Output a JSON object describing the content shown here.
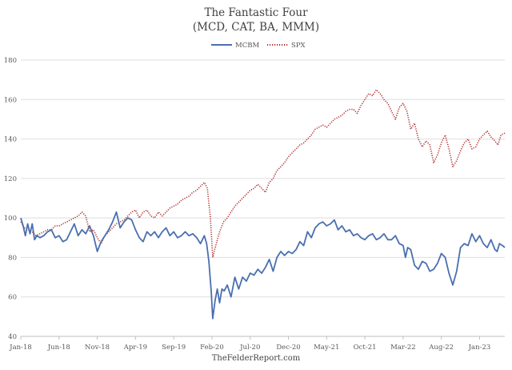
{
  "chart_data": {
    "type": "line",
    "title": "The Fantastic Four",
    "subtitle": "(MCD, CAT, BA, MMM)",
    "source": "TheFelderReport.com",
    "xlabel": "",
    "ylabel": "",
    "ylim": [
      40,
      180
    ],
    "yticks": [
      "40",
      "60",
      "80",
      "100",
      "120",
      "140",
      "160",
      "180"
    ],
    "grid": "horizontal",
    "legend_position": "top-center",
    "x_ticks": [
      {
        "t": 0,
        "label": "Jan-18"
      },
      {
        "t": 5,
        "label": "Jun-18"
      },
      {
        "t": 10,
        "label": "Nov-18"
      },
      {
        "t": 15,
        "label": "Apr-19"
      },
      {
        "t": 20,
        "label": "Sep-19"
      },
      {
        "t": 25,
        "label": "Feb-20"
      },
      {
        "t": 30,
        "label": "Jul-20"
      },
      {
        "t": 35,
        "label": "Dec-20"
      },
      {
        "t": 40,
        "label": "May-21"
      },
      {
        "t": 45,
        "label": "Oct-21"
      },
      {
        "t": 50,
        "label": "Mar-22"
      },
      {
        "t": 55,
        "label": "Aug-22"
      },
      {
        "t": 60,
        "label": "Jan-23"
      }
    ],
    "x_max": 63.3,
    "series": [
      {
        "name": "MCBM",
        "color": "#4a6fb0",
        "style": "solid",
        "points": [
          [
            0,
            100
          ],
          [
            0.3,
            96
          ],
          [
            0.6,
            91
          ],
          [
            0.9,
            97
          ],
          [
            1.2,
            92
          ],
          [
            1.5,
            97
          ],
          [
            1.8,
            89
          ],
          [
            2.1,
            91
          ],
          [
            2.5,
            90
          ],
          [
            3,
            91
          ],
          [
            3.5,
            93
          ],
          [
            4,
            94
          ],
          [
            4.5,
            90
          ],
          [
            5,
            91
          ],
          [
            5.5,
            88
          ],
          [
            6,
            89
          ],
          [
            6.5,
            93
          ],
          [
            7,
            97
          ],
          [
            7.5,
            91
          ],
          [
            8,
            94
          ],
          [
            8.5,
            92
          ],
          [
            9,
            96
          ],
          [
            9.5,
            91
          ],
          [
            10,
            83
          ],
          [
            10.5,
            88
          ],
          [
            11,
            91
          ],
          [
            11.5,
            94
          ],
          [
            12,
            98
          ],
          [
            12.5,
            103
          ],
          [
            13,
            95
          ],
          [
            13.5,
            98
          ],
          [
            14,
            100
          ],
          [
            14.5,
            99
          ],
          [
            15,
            94
          ],
          [
            15.5,
            90
          ],
          [
            16,
            88
          ],
          [
            16.5,
            93
          ],
          [
            17,
            91
          ],
          [
            17.5,
            93
          ],
          [
            18,
            90
          ],
          [
            18.5,
            93
          ],
          [
            19,
            95
          ],
          [
            19.5,
            91
          ],
          [
            20,
            93
          ],
          [
            20.5,
            90
          ],
          [
            21,
            91
          ],
          [
            21.5,
            93
          ],
          [
            22,
            91
          ],
          [
            22.5,
            92
          ],
          [
            23,
            90
          ],
          [
            23.5,
            87
          ],
          [
            24,
            91
          ],
          [
            24.3,
            87
          ],
          [
            24.6,
            78
          ],
          [
            24.9,
            63
          ],
          [
            25.1,
            49
          ],
          [
            25.4,
            58
          ],
          [
            25.7,
            64
          ],
          [
            26,
            57
          ],
          [
            26.3,
            64
          ],
          [
            26.6,
            63
          ],
          [
            27,
            66
          ],
          [
            27.5,
            60
          ],
          [
            28,
            70
          ],
          [
            28.5,
            64
          ],
          [
            29,
            70
          ],
          [
            29.5,
            68
          ],
          [
            30,
            72
          ],
          [
            30.5,
            71
          ],
          [
            31,
            74
          ],
          [
            31.5,
            72
          ],
          [
            32,
            75
          ],
          [
            32.5,
            79
          ],
          [
            33,
            73
          ],
          [
            33.5,
            80
          ],
          [
            34,
            83
          ],
          [
            34.5,
            81
          ],
          [
            35,
            83
          ],
          [
            35.5,
            82
          ],
          [
            36,
            84
          ],
          [
            36.5,
            88
          ],
          [
            37,
            86
          ],
          [
            37.5,
            93
          ],
          [
            38,
            90
          ],
          [
            38.5,
            95
          ],
          [
            39,
            97
          ],
          [
            39.5,
            98
          ],
          [
            40,
            96
          ],
          [
            40.5,
            97
          ],
          [
            41,
            99
          ],
          [
            41.5,
            94
          ],
          [
            42,
            96
          ],
          [
            42.5,
            93
          ],
          [
            43,
            94
          ],
          [
            43.5,
            91
          ],
          [
            44,
            92
          ],
          [
            44.5,
            90
          ],
          [
            45,
            89
          ],
          [
            45.5,
            91
          ],
          [
            46,
            92
          ],
          [
            46.5,
            89
          ],
          [
            47,
            90
          ],
          [
            47.5,
            92
          ],
          [
            48,
            89
          ],
          [
            48.5,
            89
          ],
          [
            49,
            91
          ],
          [
            49.5,
            87
          ],
          [
            50,
            86
          ],
          [
            50.3,
            80
          ],
          [
            50.6,
            85
          ],
          [
            51,
            84
          ],
          [
            51.5,
            76
          ],
          [
            52,
            74
          ],
          [
            52.5,
            78
          ],
          [
            53,
            77
          ],
          [
            53.5,
            73
          ],
          [
            54,
            74
          ],
          [
            54.5,
            77
          ],
          [
            55,
            82
          ],
          [
            55.5,
            80
          ],
          [
            56,
            72
          ],
          [
            56.5,
            66
          ],
          [
            57,
            73
          ],
          [
            57.5,
            85
          ],
          [
            58,
            87
          ],
          [
            58.5,
            86
          ],
          [
            59,
            92
          ],
          [
            59.5,
            88
          ],
          [
            60,
            91
          ],
          [
            60.5,
            87
          ],
          [
            61,
            85
          ],
          [
            61.5,
            89
          ],
          [
            62,
            84
          ],
          [
            62.3,
            83
          ],
          [
            62.6,
            87
          ],
          [
            63,
            86
          ],
          [
            63.3,
            85
          ]
        ]
      },
      {
        "name": "SPX",
        "color": "#b03030",
        "style": "dotted",
        "points": [
          [
            0,
            98
          ],
          [
            0.5,
            95
          ],
          [
            1,
            94
          ],
          [
            1.5,
            93
          ],
          [
            2,
            91
          ],
          [
            2.5,
            92
          ],
          [
            3,
            93
          ],
          [
            3.5,
            94
          ],
          [
            4,
            94
          ],
          [
            4.5,
            96
          ],
          [
            5,
            96
          ],
          [
            5.5,
            97
          ],
          [
            6,
            98
          ],
          [
            6.5,
            99
          ],
          [
            7,
            100
          ],
          [
            7.5,
            101
          ],
          [
            8,
            103
          ],
          [
            8.5,
            101
          ],
          [
            9,
            93
          ],
          [
            9.5,
            94
          ],
          [
            10,
            90
          ],
          [
            10.5,
            87
          ],
          [
            11,
            91
          ],
          [
            11.5,
            93
          ],
          [
            12,
            95
          ],
          [
            12.5,
            97
          ],
          [
            13,
            98
          ],
          [
            13.5,
            99
          ],
          [
            14,
            101
          ],
          [
            14.5,
            103
          ],
          [
            15,
            104
          ],
          [
            15.5,
            100
          ],
          [
            16,
            103
          ],
          [
            16.5,
            104
          ],
          [
            17,
            101
          ],
          [
            17.5,
            100
          ],
          [
            18,
            103
          ],
          [
            18.5,
            101
          ],
          [
            19,
            103
          ],
          [
            19.5,
            105
          ],
          [
            20,
            106
          ],
          [
            20.5,
            107
          ],
          [
            21,
            109
          ],
          [
            21.5,
            110
          ],
          [
            22,
            111
          ],
          [
            22.5,
            113
          ],
          [
            23,
            114
          ],
          [
            23.5,
            116
          ],
          [
            24,
            118
          ],
          [
            24.4,
            115
          ],
          [
            24.8,
            100
          ],
          [
            25.1,
            80
          ],
          [
            25.5,
            86
          ],
          [
            26,
            93
          ],
          [
            26.5,
            98
          ],
          [
            27,
            100
          ],
          [
            27.5,
            103
          ],
          [
            28,
            106
          ],
          [
            28.5,
            108
          ],
          [
            29,
            110
          ],
          [
            29.5,
            112
          ],
          [
            30,
            114
          ],
          [
            30.5,
            115
          ],
          [
            31,
            117
          ],
          [
            31.5,
            115
          ],
          [
            32,
            113
          ],
          [
            32.5,
            118
          ],
          [
            33,
            120
          ],
          [
            33.5,
            124
          ],
          [
            34,
            126
          ],
          [
            34.5,
            128
          ],
          [
            35,
            131
          ],
          [
            35.5,
            133
          ],
          [
            36,
            135
          ],
          [
            36.5,
            137
          ],
          [
            37,
            138
          ],
          [
            37.5,
            140
          ],
          [
            38,
            142
          ],
          [
            38.5,
            145
          ],
          [
            39,
            146
          ],
          [
            39.5,
            147
          ],
          [
            40,
            146
          ],
          [
            40.5,
            148
          ],
          [
            41,
            150
          ],
          [
            41.5,
            151
          ],
          [
            42,
            152
          ],
          [
            42.5,
            154
          ],
          [
            43,
            155
          ],
          [
            43.5,
            155
          ],
          [
            44,
            153
          ],
          [
            44.5,
            157
          ],
          [
            45,
            160
          ],
          [
            45.5,
            163
          ],
          [
            46,
            162
          ],
          [
            46.5,
            165
          ],
          [
            47,
            163
          ],
          [
            47.5,
            160
          ],
          [
            48,
            158
          ],
          [
            48.5,
            154
          ],
          [
            49,
            150
          ],
          [
            49.5,
            156
          ],
          [
            50,
            158
          ],
          [
            50.5,
            154
          ],
          [
            51,
            145
          ],
          [
            51.5,
            148
          ],
          [
            52,
            140
          ],
          [
            52.5,
            136
          ],
          [
            53,
            139
          ],
          [
            53.5,
            137
          ],
          [
            54,
            128
          ],
          [
            54.5,
            132
          ],
          [
            55,
            138
          ],
          [
            55.5,
            142
          ],
          [
            56,
            135
          ],
          [
            56.5,
            126
          ],
          [
            57,
            129
          ],
          [
            57.5,
            134
          ],
          [
            58,
            138
          ],
          [
            58.5,
            140
          ],
          [
            59,
            135
          ],
          [
            59.5,
            136
          ],
          [
            60,
            140
          ],
          [
            60.5,
            142
          ],
          [
            61,
            144
          ],
          [
            61.5,
            141
          ],
          [
            62,
            139
          ],
          [
            62.4,
            137
          ],
          [
            62.8,
            142
          ],
          [
            63.3,
            143
          ]
        ]
      }
    ]
  }
}
